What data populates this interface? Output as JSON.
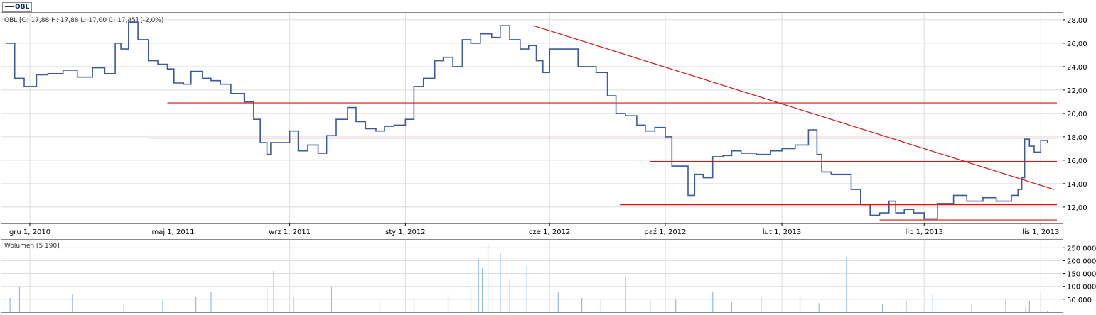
{
  "header": {
    "legend_label": "OBL"
  },
  "info_line": "OBL [O: 17,88  H: 17,88  L: 17,00  C: 17,45] (-2,0%)",
  "volume_label": "Wolumen [5 190]",
  "colors": {
    "price_line": "#3a5a9c",
    "trend_line": "#d21414",
    "volume_bar": "#8fbde6",
    "grid": "#dcdcdc",
    "frame": "#8a8a8a"
  },
  "chart_data": [
    {
      "type": "line",
      "title": "",
      "series": [
        {
          "name": "OBL",
          "x": [
            "2010-11-06",
            "2010-11-15",
            "2010-11-25",
            "2010-12-08",
            "2010-12-20",
            "2011-01-05",
            "2011-01-20",
            "2011-02-05",
            "2011-02-18",
            "2011-03-01",
            "2011-03-07",
            "2011-03-15",
            "2011-03-25",
            "2011-04-05",
            "2011-04-15",
            "2011-04-25",
            "2011-05-02",
            "2011-05-12",
            "2011-05-20",
            "2011-06-01",
            "2011-06-10",
            "2011-06-20",
            "2011-07-01",
            "2011-07-15",
            "2011-07-25",
            "2011-08-01",
            "2011-08-08",
            "2011-08-12",
            "2011-08-20",
            "2011-09-01",
            "2011-09-10",
            "2011-09-20",
            "2011-10-01",
            "2011-10-10",
            "2011-10-20",
            "2011-11-01",
            "2011-11-10",
            "2011-11-20",
            "2011-12-01",
            "2011-12-10",
            "2011-12-20",
            "2012-01-01",
            "2012-01-10",
            "2012-01-20",
            "2012-02-01",
            "2012-02-10",
            "2012-02-20",
            "2012-03-01",
            "2012-03-10",
            "2012-03-20",
            "2012-04-01",
            "2012-04-10",
            "2012-04-20",
            "2012-05-01",
            "2012-05-10",
            "2012-05-18",
            "2012-05-25",
            "2012-06-01",
            "2012-06-10",
            "2012-06-20",
            "2012-07-01",
            "2012-07-10",
            "2012-07-20",
            "2012-08-01",
            "2012-08-10",
            "2012-08-20",
            "2012-09-01",
            "2012-09-10",
            "2012-09-20",
            "2012-10-01",
            "2012-10-08",
            "2012-10-15",
            "2012-10-25",
            "2012-11-01",
            "2012-11-10",
            "2012-11-20",
            "2012-12-01",
            "2012-12-10",
            "2012-12-20",
            "2013-01-05",
            "2013-01-20",
            "2013-02-01",
            "2013-02-15",
            "2013-03-01",
            "2013-03-10",
            "2013-03-15",
            "2013-03-25",
            "2013-04-05",
            "2013-04-15",
            "2013-04-25",
            "2013-05-05",
            "2013-05-15",
            "2013-05-25",
            "2013-06-01",
            "2013-06-10",
            "2013-06-20",
            "2013-07-01",
            "2013-07-15",
            "2013-08-01",
            "2013-08-15",
            "2013-09-01",
            "2013-09-15",
            "2013-10-01",
            "2013-10-08",
            "2013-10-12",
            "2013-10-15",
            "2013-10-20",
            "2013-10-25",
            "2013-11-01",
            "2013-11-08"
          ],
          "values": [
            26.0,
            23.0,
            22.3,
            23.3,
            23.4,
            23.7,
            23.1,
            23.9,
            23.4,
            26.0,
            25.5,
            27.8,
            26.3,
            24.5,
            24.2,
            23.8,
            22.6,
            22.5,
            23.6,
            23.0,
            22.8,
            22.5,
            21.7,
            21.0,
            19.5,
            17.5,
            16.5,
            17.5,
            17.5,
            18.5,
            16.8,
            17.3,
            16.6,
            18.1,
            19.5,
            20.5,
            19.3,
            18.7,
            18.5,
            18.9,
            19.0,
            19.5,
            22.3,
            23.0,
            24.5,
            24.8,
            24.0,
            26.3,
            26.0,
            26.8,
            26.5,
            27.5,
            26.3,
            25.5,
            25.8,
            24.5,
            23.5,
            25.5,
            25.5,
            25.5,
            24.0,
            24.0,
            23.5,
            21.5,
            20.0,
            19.8,
            19.0,
            18.5,
            18.8,
            18.0,
            15.5,
            15.5,
            13.0,
            14.8,
            14.5,
            16.3,
            16.4,
            16.8,
            16.6,
            16.5,
            16.8,
            17.0,
            17.3,
            18.6,
            16.5,
            15.0,
            14.8,
            14.8,
            13.5,
            12.2,
            11.3,
            11.5,
            12.5,
            11.5,
            11.8,
            11.5,
            11.0,
            12.3,
            13.0,
            12.5,
            12.8,
            12.5,
            13.0,
            13.5,
            14.5,
            17.8,
            17.2,
            16.7,
            17.7,
            17.45
          ]
        }
      ],
      "horizontal_lines": [
        {
          "y": 20.9,
          "x_start": "2011-04-25",
          "x_end": "2013-11-20"
        },
        {
          "y": 17.9,
          "x_start": "2011-04-05",
          "x_end": "2013-11-20"
        },
        {
          "y": 15.9,
          "x_start": "2012-09-15",
          "x_end": "2013-11-20"
        },
        {
          "y": 12.2,
          "x_start": "2012-08-15",
          "x_end": "2013-11-20"
        },
        {
          "y": 10.9,
          "x_start": "2013-05-15",
          "x_end": "2013-11-20"
        }
      ],
      "trend_line": {
        "x_start": "2012-05-15",
        "y_start": 27.5,
        "x_end": "2013-11-15",
        "y_end": 13.5
      },
      "xlabel": "",
      "ylabel": "",
      "x_range": [
        "2010-11-01",
        "2013-11-24"
      ],
      "ylim": [
        10.6,
        28.6
      ],
      "y_ticks": [
        12,
        14,
        16,
        18,
        20,
        22,
        24,
        26,
        28
      ],
      "y_tick_labels": [
        "12,00",
        "14,00",
        "16,00",
        "18,00",
        "20,00",
        "22,00",
        "24,00",
        "26,00",
        "28,00"
      ],
      "x_ticks": [
        "2010-12-01",
        "2011-05-01",
        "2011-09-01",
        "2012-01-01",
        "2012-06-01",
        "2012-10-01",
        "2013-02-01",
        "2013-07-01",
        "2013-11-01"
      ],
      "x_tick_labels": [
        "gru 1, 2010",
        "maj 1, 2011",
        "wrz 1, 2011",
        "sty 1, 2012",
        "cze 1, 2012",
        "paź 1, 2012",
        "lut 1, 2013",
        "lip 1, 2013",
        "lis 1, 2013"
      ],
      "grid": true
    },
    {
      "type": "bar",
      "title": "",
      "series": [
        {
          "name": "Wolumen",
          "x": [
            "2010-11-10",
            "2010-11-20",
            "2011-01-15",
            "2011-03-10",
            "2011-04-20",
            "2011-05-25",
            "2011-06-10",
            "2011-08-08",
            "2011-08-15",
            "2011-09-05",
            "2011-10-15",
            "2011-12-05",
            "2012-01-10",
            "2012-02-15",
            "2012-03-10",
            "2012-03-18",
            "2012-03-22",
            "2012-03-28",
            "2012-04-10",
            "2012-04-20",
            "2012-05-08",
            "2012-06-10",
            "2012-07-05",
            "2012-07-25",
            "2012-08-20",
            "2012-09-15",
            "2012-10-12",
            "2012-11-20",
            "2012-12-10",
            "2013-01-10",
            "2013-02-20",
            "2013-03-12",
            "2013-04-10",
            "2013-05-18",
            "2013-06-12",
            "2013-07-10",
            "2013-08-20",
            "2013-09-25",
            "2013-10-16",
            "2013-10-20",
            "2013-11-01",
            "2013-11-08"
          ],
          "values": [
            55000,
            100000,
            70000,
            30000,
            45000,
            60000,
            80000,
            95000,
            160000,
            60000,
            100000,
            40000,
            55000,
            70000,
            100000,
            210000,
            170000,
            270000,
            230000,
            130000,
            180000,
            80000,
            55000,
            50000,
            135000,
            45000,
            50000,
            80000,
            40000,
            60000,
            65000,
            35000,
            215000,
            30000,
            45000,
            70000,
            30000,
            50000,
            20000,
            45000,
            80000,
            5190
          ]
        }
      ],
      "ylim": [
        0,
        270000
      ],
      "y_ticks": [
        50000,
        100000,
        150000,
        200000,
        250000
      ],
      "y_tick_labels": [
        "50 000",
        "100 000",
        "150 000",
        "200 000",
        "250 000"
      ],
      "grid": true
    }
  ]
}
